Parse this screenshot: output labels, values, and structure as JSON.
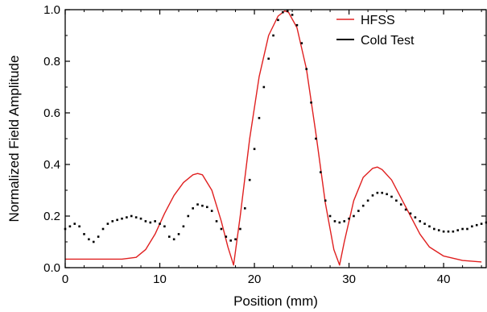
{
  "chart_data": {
    "type": "line",
    "title": "",
    "xlabel": "Position (mm)",
    "ylabel": "Normalized Field Amplitude",
    "xlim": [
      0,
      44.5
    ],
    "ylim": [
      0,
      1.0
    ],
    "xticks": [
      0,
      10,
      20,
      30,
      40
    ],
    "yticks": [
      0.0,
      0.2,
      0.4,
      0.6,
      0.8,
      1.0
    ],
    "xtick_labels": [
      "0",
      "10",
      "20",
      "30",
      "40"
    ],
    "ytick_labels": [
      "0.0",
      "0.2",
      "0.4",
      "0.6",
      "0.8",
      "1.0"
    ],
    "grid": false,
    "legend_position": "top-right",
    "series": [
      {
        "name": "HFSS",
        "style": "line",
        "color": "#e02020",
        "x": [
          0,
          6,
          7.5,
          8.5,
          9.5,
          10.5,
          11.5,
          12.5,
          13.5,
          14.0,
          14.5,
          15.5,
          16.5,
          17.2,
          17.8,
          18.5,
          19.5,
          20.5,
          21.5,
          22.5,
          23.2,
          23.6,
          24.5,
          25.5,
          26.5,
          27.5,
          28.4,
          29.0,
          29.5,
          30.5,
          31.5,
          32.5,
          33.0,
          33.5,
          34.5,
          35.5,
          36.5,
          37.5,
          38.5,
          40.0,
          42.0,
          44.0
        ],
        "y": [
          0.033,
          0.033,
          0.04,
          0.07,
          0.13,
          0.21,
          0.28,
          0.33,
          0.36,
          0.365,
          0.36,
          0.3,
          0.18,
          0.08,
          0.01,
          0.2,
          0.5,
          0.74,
          0.9,
          0.975,
          0.995,
          0.99,
          0.93,
          0.77,
          0.52,
          0.25,
          0.07,
          0.01,
          0.1,
          0.26,
          0.35,
          0.385,
          0.39,
          0.38,
          0.34,
          0.27,
          0.2,
          0.13,
          0.08,
          0.045,
          0.028,
          0.022
        ]
      },
      {
        "name": "Cold Test",
        "style": "dots",
        "color": "#000000",
        "x": [
          0,
          0.5,
          1,
          1.5,
          2,
          2.5,
          3,
          3.5,
          4,
          4.5,
          5,
          5.5,
          6,
          6.5,
          7,
          7.5,
          8,
          8.5,
          9,
          9.5,
          10,
          10.5,
          11,
          11.5,
          12,
          12.5,
          13,
          13.5,
          14,
          14.5,
          15,
          15.5,
          16,
          16.5,
          17,
          17.5,
          18,
          18.5,
          19,
          19.5,
          20,
          20.5,
          21,
          21.5,
          22,
          22.5,
          23,
          23.5,
          24,
          24.5,
          25,
          25.5,
          26,
          26.5,
          27,
          27.5,
          28,
          28.5,
          29,
          29.5,
          30,
          30.5,
          31,
          31.5,
          32,
          32.5,
          33,
          33.5,
          34,
          34.5,
          35,
          35.5,
          36,
          36.5,
          37,
          37.5,
          38,
          38.5,
          39,
          39.5,
          40,
          40.5,
          41,
          41.5,
          42,
          42.5,
          43,
          43.5,
          44,
          44.5
        ],
        "y": [
          0.15,
          0.16,
          0.17,
          0.16,
          0.13,
          0.11,
          0.1,
          0.12,
          0.15,
          0.17,
          0.18,
          0.185,
          0.19,
          0.195,
          0.2,
          0.195,
          0.19,
          0.18,
          0.175,
          0.18,
          0.17,
          0.16,
          0.12,
          0.11,
          0.13,
          0.16,
          0.2,
          0.23,
          0.245,
          0.24,
          0.235,
          0.22,
          0.18,
          0.15,
          0.12,
          0.105,
          0.11,
          0.15,
          0.23,
          0.34,
          0.46,
          0.58,
          0.7,
          0.81,
          0.9,
          0.96,
          0.99,
          0.995,
          0.98,
          0.94,
          0.87,
          0.77,
          0.64,
          0.5,
          0.37,
          0.26,
          0.2,
          0.18,
          0.175,
          0.18,
          0.19,
          0.2,
          0.22,
          0.24,
          0.26,
          0.28,
          0.29,
          0.29,
          0.285,
          0.275,
          0.26,
          0.245,
          0.225,
          0.21,
          0.195,
          0.18,
          0.17,
          0.16,
          0.15,
          0.145,
          0.14,
          0.14,
          0.14,
          0.145,
          0.15,
          0.15,
          0.16,
          0.165,
          0.17,
          0.175
        ]
      }
    ]
  }
}
